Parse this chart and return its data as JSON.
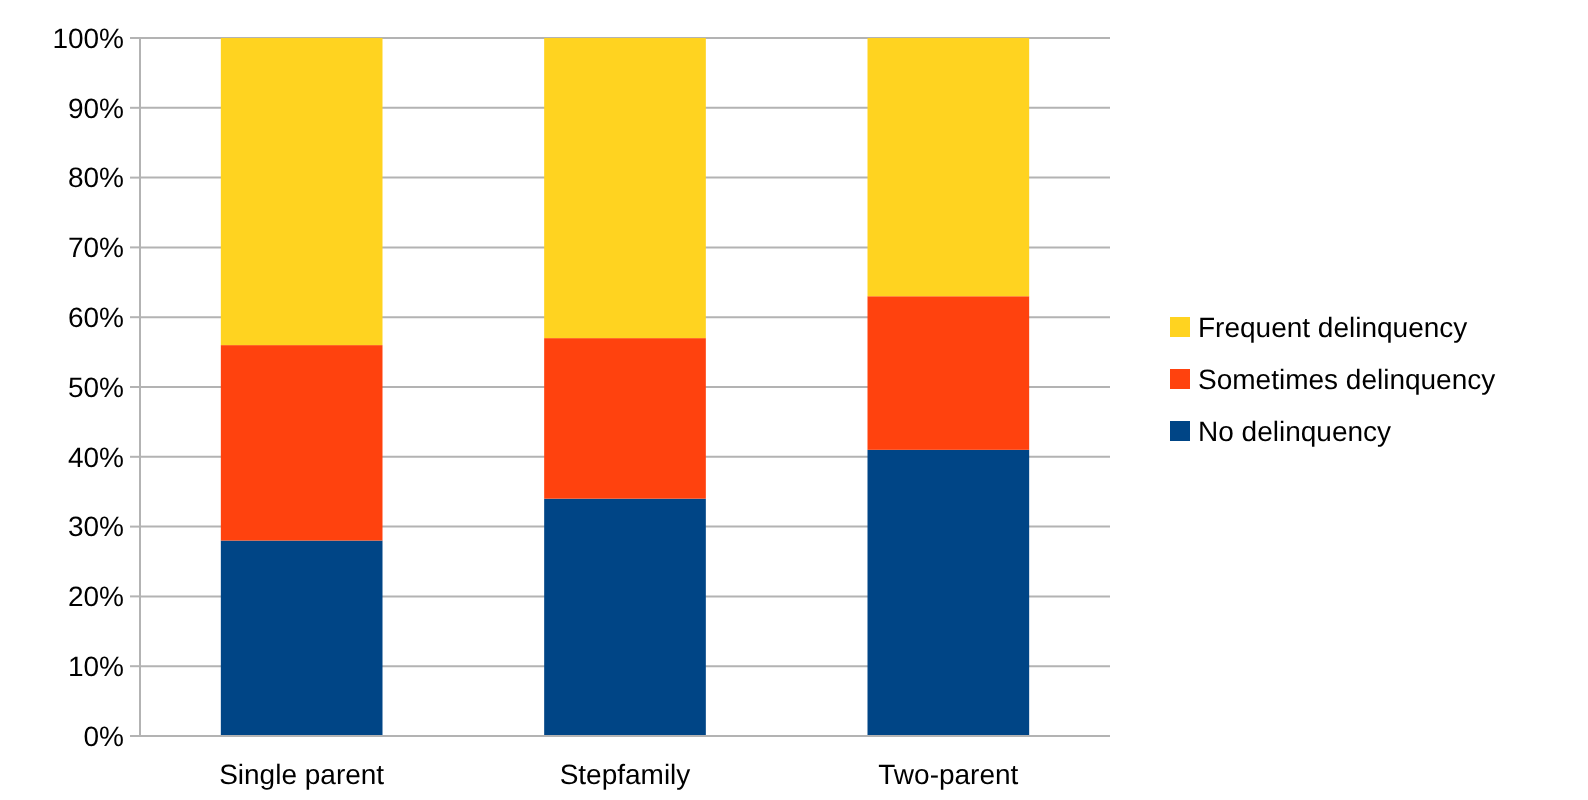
{
  "chart_data": {
    "type": "bar",
    "stacked": true,
    "categories": [
      "Single parent",
      "Stepfamily",
      "Two-parent"
    ],
    "series": [
      {
        "name": "No delinquency",
        "color": "#004586",
        "values": [
          28,
          34,
          41
        ]
      },
      {
        "name": "Sometimes delinquency",
        "color": "#ff420e",
        "values": [
          28,
          23,
          22
        ]
      },
      {
        "name": "Frequent delinquency",
        "color": "#ffd320",
        "values": [
          44,
          43,
          37
        ]
      }
    ],
    "ylim": [
      0,
      100
    ],
    "yticks": [
      {
        "value": 0,
        "label": "0%"
      },
      {
        "value": 10,
        "label": "10%"
      },
      {
        "value": 20,
        "label": "20%"
      },
      {
        "value": 30,
        "label": "30%"
      },
      {
        "value": 40,
        "label": "40%"
      },
      {
        "value": 50,
        "label": "50%"
      },
      {
        "value": 60,
        "label": "60%"
      },
      {
        "value": 70,
        "label": "70%"
      },
      {
        "value": 80,
        "label": "80%"
      },
      {
        "value": 90,
        "label": "90%"
      },
      {
        "value": 100,
        "label": "100%"
      }
    ],
    "grid": "y",
    "legend": "right"
  }
}
